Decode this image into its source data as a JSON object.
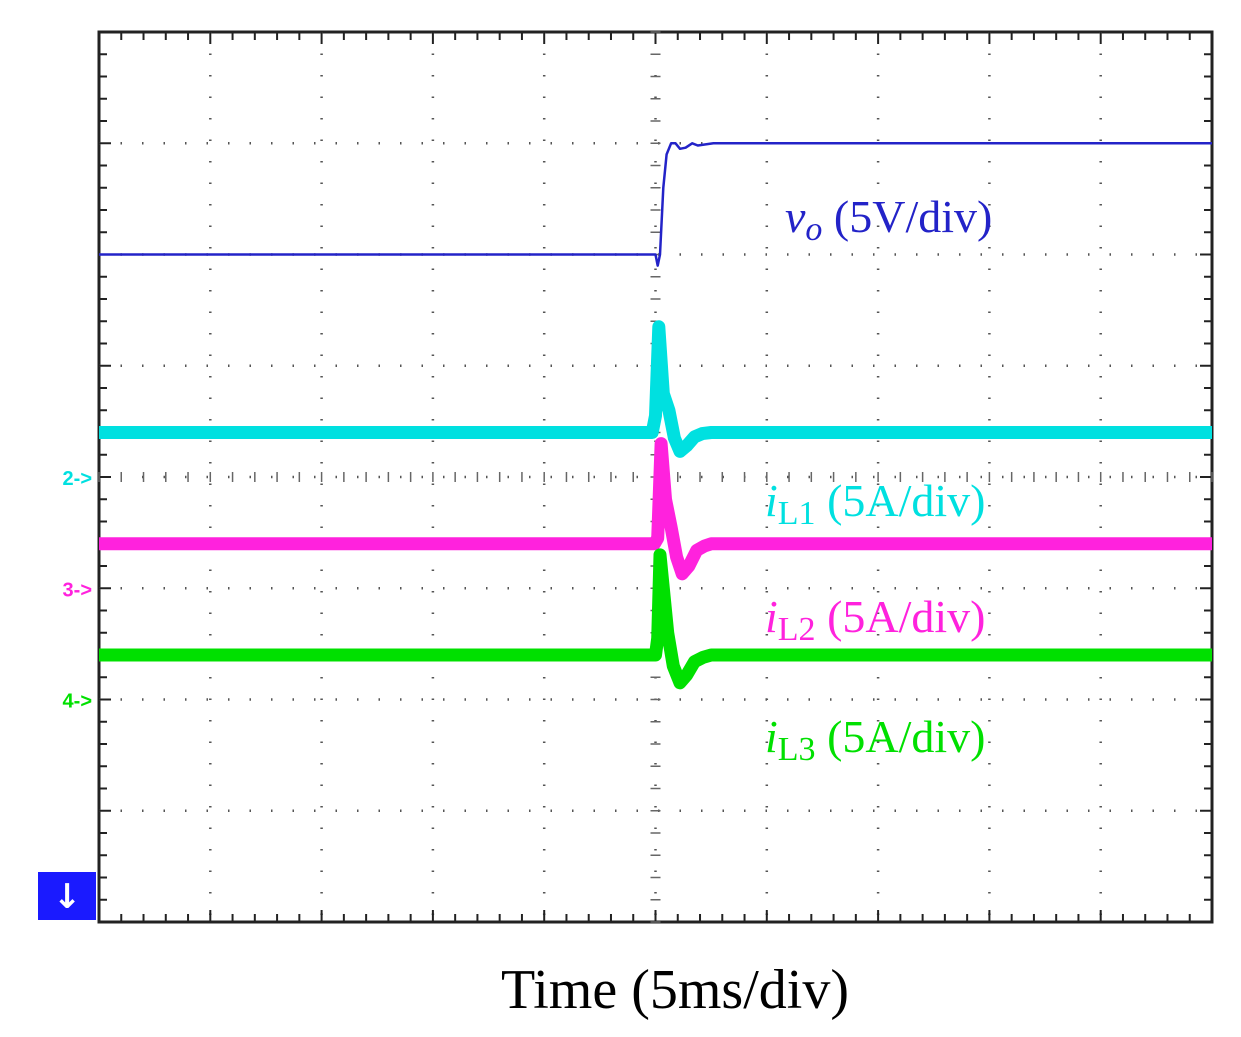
{
  "chart_data": {
    "type": "line",
    "xlabel": "Time (5ms/div)",
    "x_divisions": 10,
    "y_divisions": 8,
    "x_range_div": [
      0,
      10
    ],
    "y_range_div": [
      0,
      8
    ],
    "grid": true,
    "trigger_marker": "↓",
    "series": [
      {
        "name": "vo",
        "label_main": "v",
        "label_sub": "o",
        "label_scale": " (5V/div)",
        "color": "#2323c8",
        "marker": "",
        "style": "thin",
        "x": [
          0,
          5.0,
          5.02,
          5.04,
          5.07,
          5.1,
          5.14,
          5.18,
          5.22,
          5.27,
          5.33,
          5.38,
          5.45,
          5.52,
          5.6,
          10
        ],
        "y": [
          6.0,
          6.0,
          5.9,
          6.0,
          6.6,
          6.9,
          7.0,
          7.0,
          6.95,
          6.96,
          7.0,
          6.98,
          6.99,
          7.0,
          7.0,
          7.0
        ]
      },
      {
        "name": "iL1",
        "label_main": "i",
        "label_sub": "L1",
        "label_scale": " (5A/div)",
        "color": "#00e0e0",
        "marker": "2->",
        "style": "thick",
        "x": [
          0,
          4.97,
          5.0,
          5.03,
          5.07,
          5.12,
          5.17,
          5.22,
          5.28,
          5.35,
          5.42,
          5.5,
          10
        ],
        "y": [
          4.4,
          4.4,
          4.55,
          5.35,
          4.75,
          4.6,
          4.35,
          4.23,
          4.28,
          4.36,
          4.39,
          4.4,
          4.4
        ]
      },
      {
        "name": "iL2",
        "label_main": "i",
        "label_sub": "L2",
        "label_scale": " (5A/div)",
        "color": "#ff22dd",
        "marker": "3->",
        "style": "thick",
        "x": [
          0,
          4.99,
          5.02,
          5.05,
          5.09,
          5.14,
          5.19,
          5.24,
          5.3,
          5.37,
          5.44,
          5.5,
          10
        ],
        "y": [
          3.4,
          3.4,
          3.45,
          4.3,
          3.8,
          3.55,
          3.28,
          3.13,
          3.2,
          3.34,
          3.38,
          3.4,
          3.4
        ]
      },
      {
        "name": "iL3",
        "label_main": "i",
        "label_sub": "L3",
        "label_scale": " (5A/div)",
        "color": "#00e000",
        "marker": "4->",
        "style": "thick",
        "x": [
          0,
          5.0,
          5.02,
          5.04,
          5.07,
          5.11,
          5.16,
          5.22,
          5.28,
          5.35,
          5.43,
          5.5,
          10
        ],
        "y": [
          2.4,
          2.4,
          2.55,
          3.3,
          3.0,
          2.6,
          2.3,
          2.15,
          2.22,
          2.34,
          2.38,
          2.4,
          2.4
        ]
      }
    ]
  }
}
